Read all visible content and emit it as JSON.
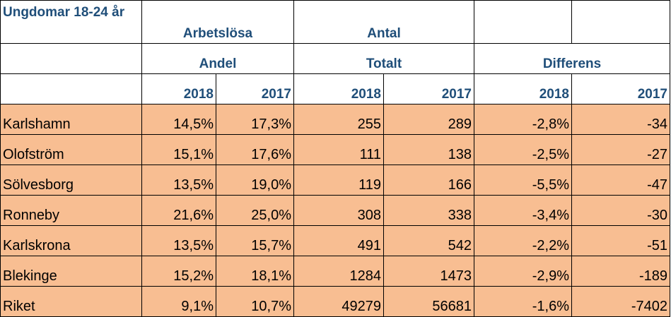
{
  "header": {
    "title": "Ungdomar 18-24 år",
    "group1_top": "Arbetslösa",
    "group2_top": "Antal",
    "group1_bottom": "Andel",
    "group2_bottom": "Totalt",
    "group3_bottom": "Differens",
    "years": [
      "2018",
      "2017",
      "2018",
      "2017",
      "2018",
      "2017"
    ]
  },
  "rows": [
    {
      "name": "Karlshamn",
      "andel_2018": "14,5%",
      "andel_2017": "17,3%",
      "antal_2018": "255",
      "antal_2017": "289",
      "diff_2018": "-2,8%",
      "diff_2017": "-34"
    },
    {
      "name": "Olofström",
      "andel_2018": "15,1%",
      "andel_2017": "17,6%",
      "antal_2018": "111",
      "antal_2017": "138",
      "diff_2018": "-2,5%",
      "diff_2017": "-27"
    },
    {
      "name": "Sölvesborg",
      "andel_2018": "13,5%",
      "andel_2017": "19,0%",
      "antal_2018": "119",
      "antal_2017": "166",
      "diff_2018": "-5,5%",
      "diff_2017": "-47"
    },
    {
      "name": "Ronneby",
      "andel_2018": "21,6%",
      "andel_2017": "25,0%",
      "antal_2018": "308",
      "antal_2017": "338",
      "diff_2018": "-3,4%",
      "diff_2017": "-30"
    },
    {
      "name": "Karlskrona",
      "andel_2018": "13,5%",
      "andel_2017": "15,7%",
      "antal_2018": "491",
      "antal_2017": "542",
      "diff_2018": "-2,2%",
      "diff_2017": "-51"
    },
    {
      "name": "Blekinge",
      "andel_2018": "15,2%",
      "andel_2017": "18,1%",
      "antal_2018": "1284",
      "antal_2017": "1473",
      "diff_2018": "-2,9%",
      "diff_2017": "-189"
    },
    {
      "name": "Riket",
      "andel_2018": "9,1%",
      "andel_2017": "10,7%",
      "antal_2018": "49279",
      "antal_2017": "56681",
      "diff_2018": "-1,6%",
      "diff_2017": "-7402"
    }
  ]
}
